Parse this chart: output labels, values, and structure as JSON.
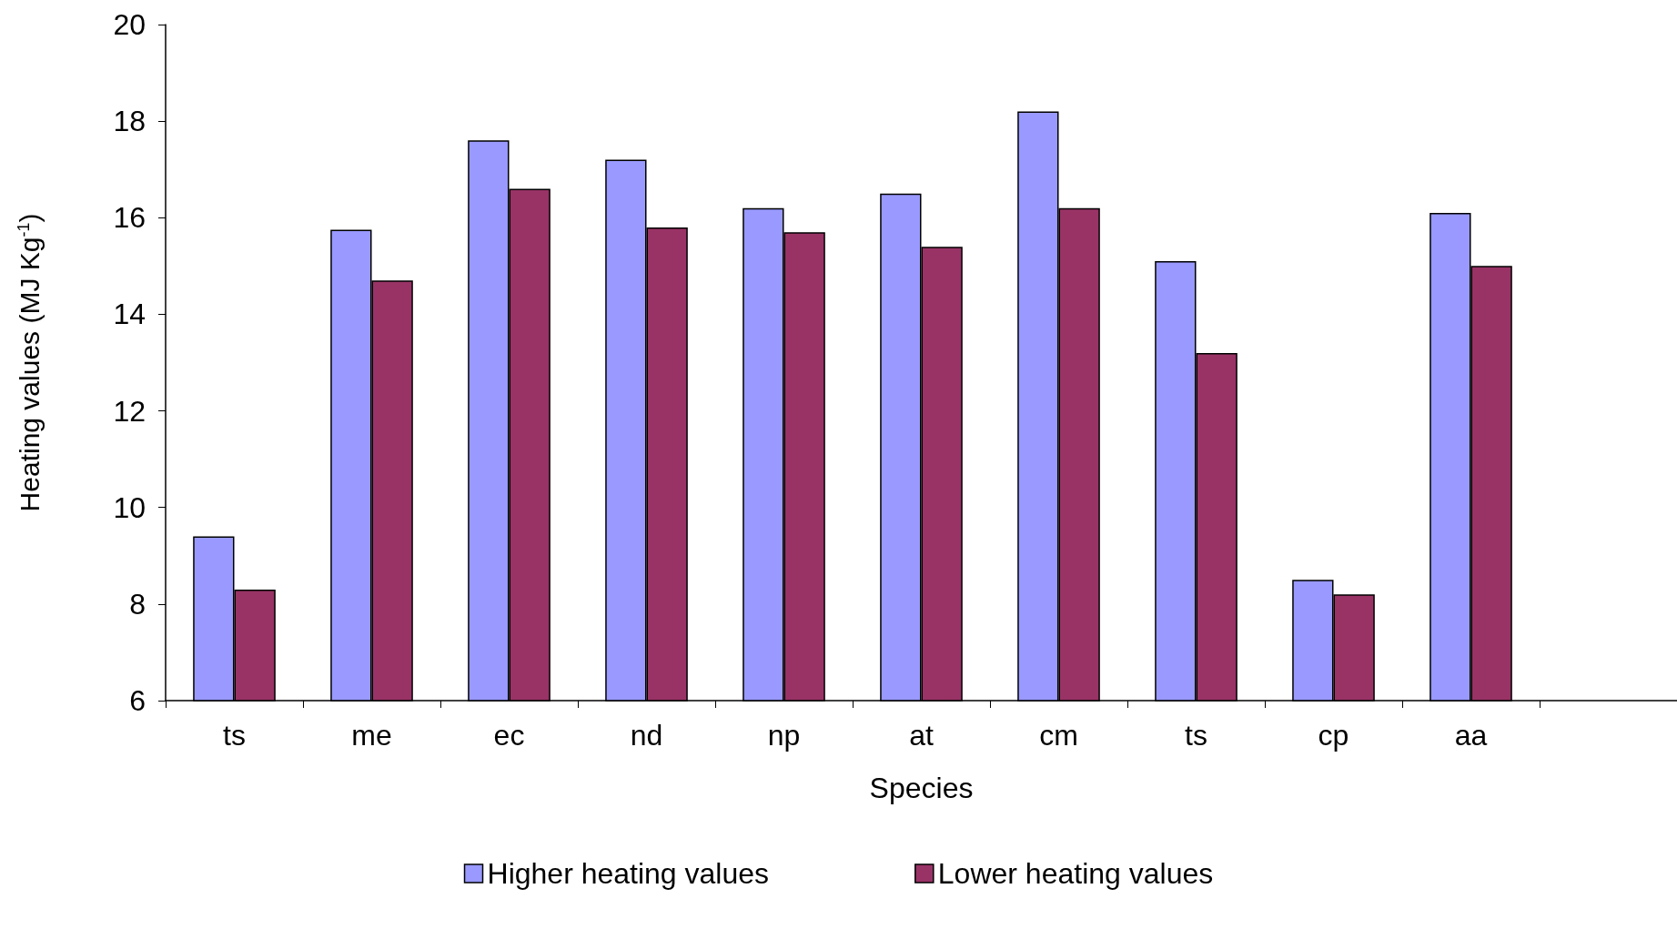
{
  "chart_data": {
    "type": "bar",
    "xlabel": "Species",
    "ylabel": "Heating values (MJ Kg$^{-1}$)",
    "categories": [
      "ts",
      "me",
      "ec",
      "nd",
      "np",
      "at",
      "cm",
      "ts",
      "cp",
      "aa",
      null
    ],
    "series": [
      {
        "name": "Higher heating values",
        "color": "#9999ff",
        "values": [
          9.4,
          15.75,
          17.6,
          17.2,
          16.2,
          16.5,
          18.2,
          15.1,
          8.5,
          16.1,
          null
        ]
      },
      {
        "name": "Lower heating values",
        "color": "#993366",
        "values": [
          8.3,
          14.7,
          16.6,
          15.8,
          15.7,
          15.4,
          16.2,
          13.2,
          8.2,
          15.0,
          null
        ]
      }
    ],
    "ylim": [
      6,
      20
    ],
    "yticks": [
      6,
      8,
      10,
      12,
      14,
      16,
      18,
      20
    ],
    "grid": false,
    "legend": "bottom"
  }
}
